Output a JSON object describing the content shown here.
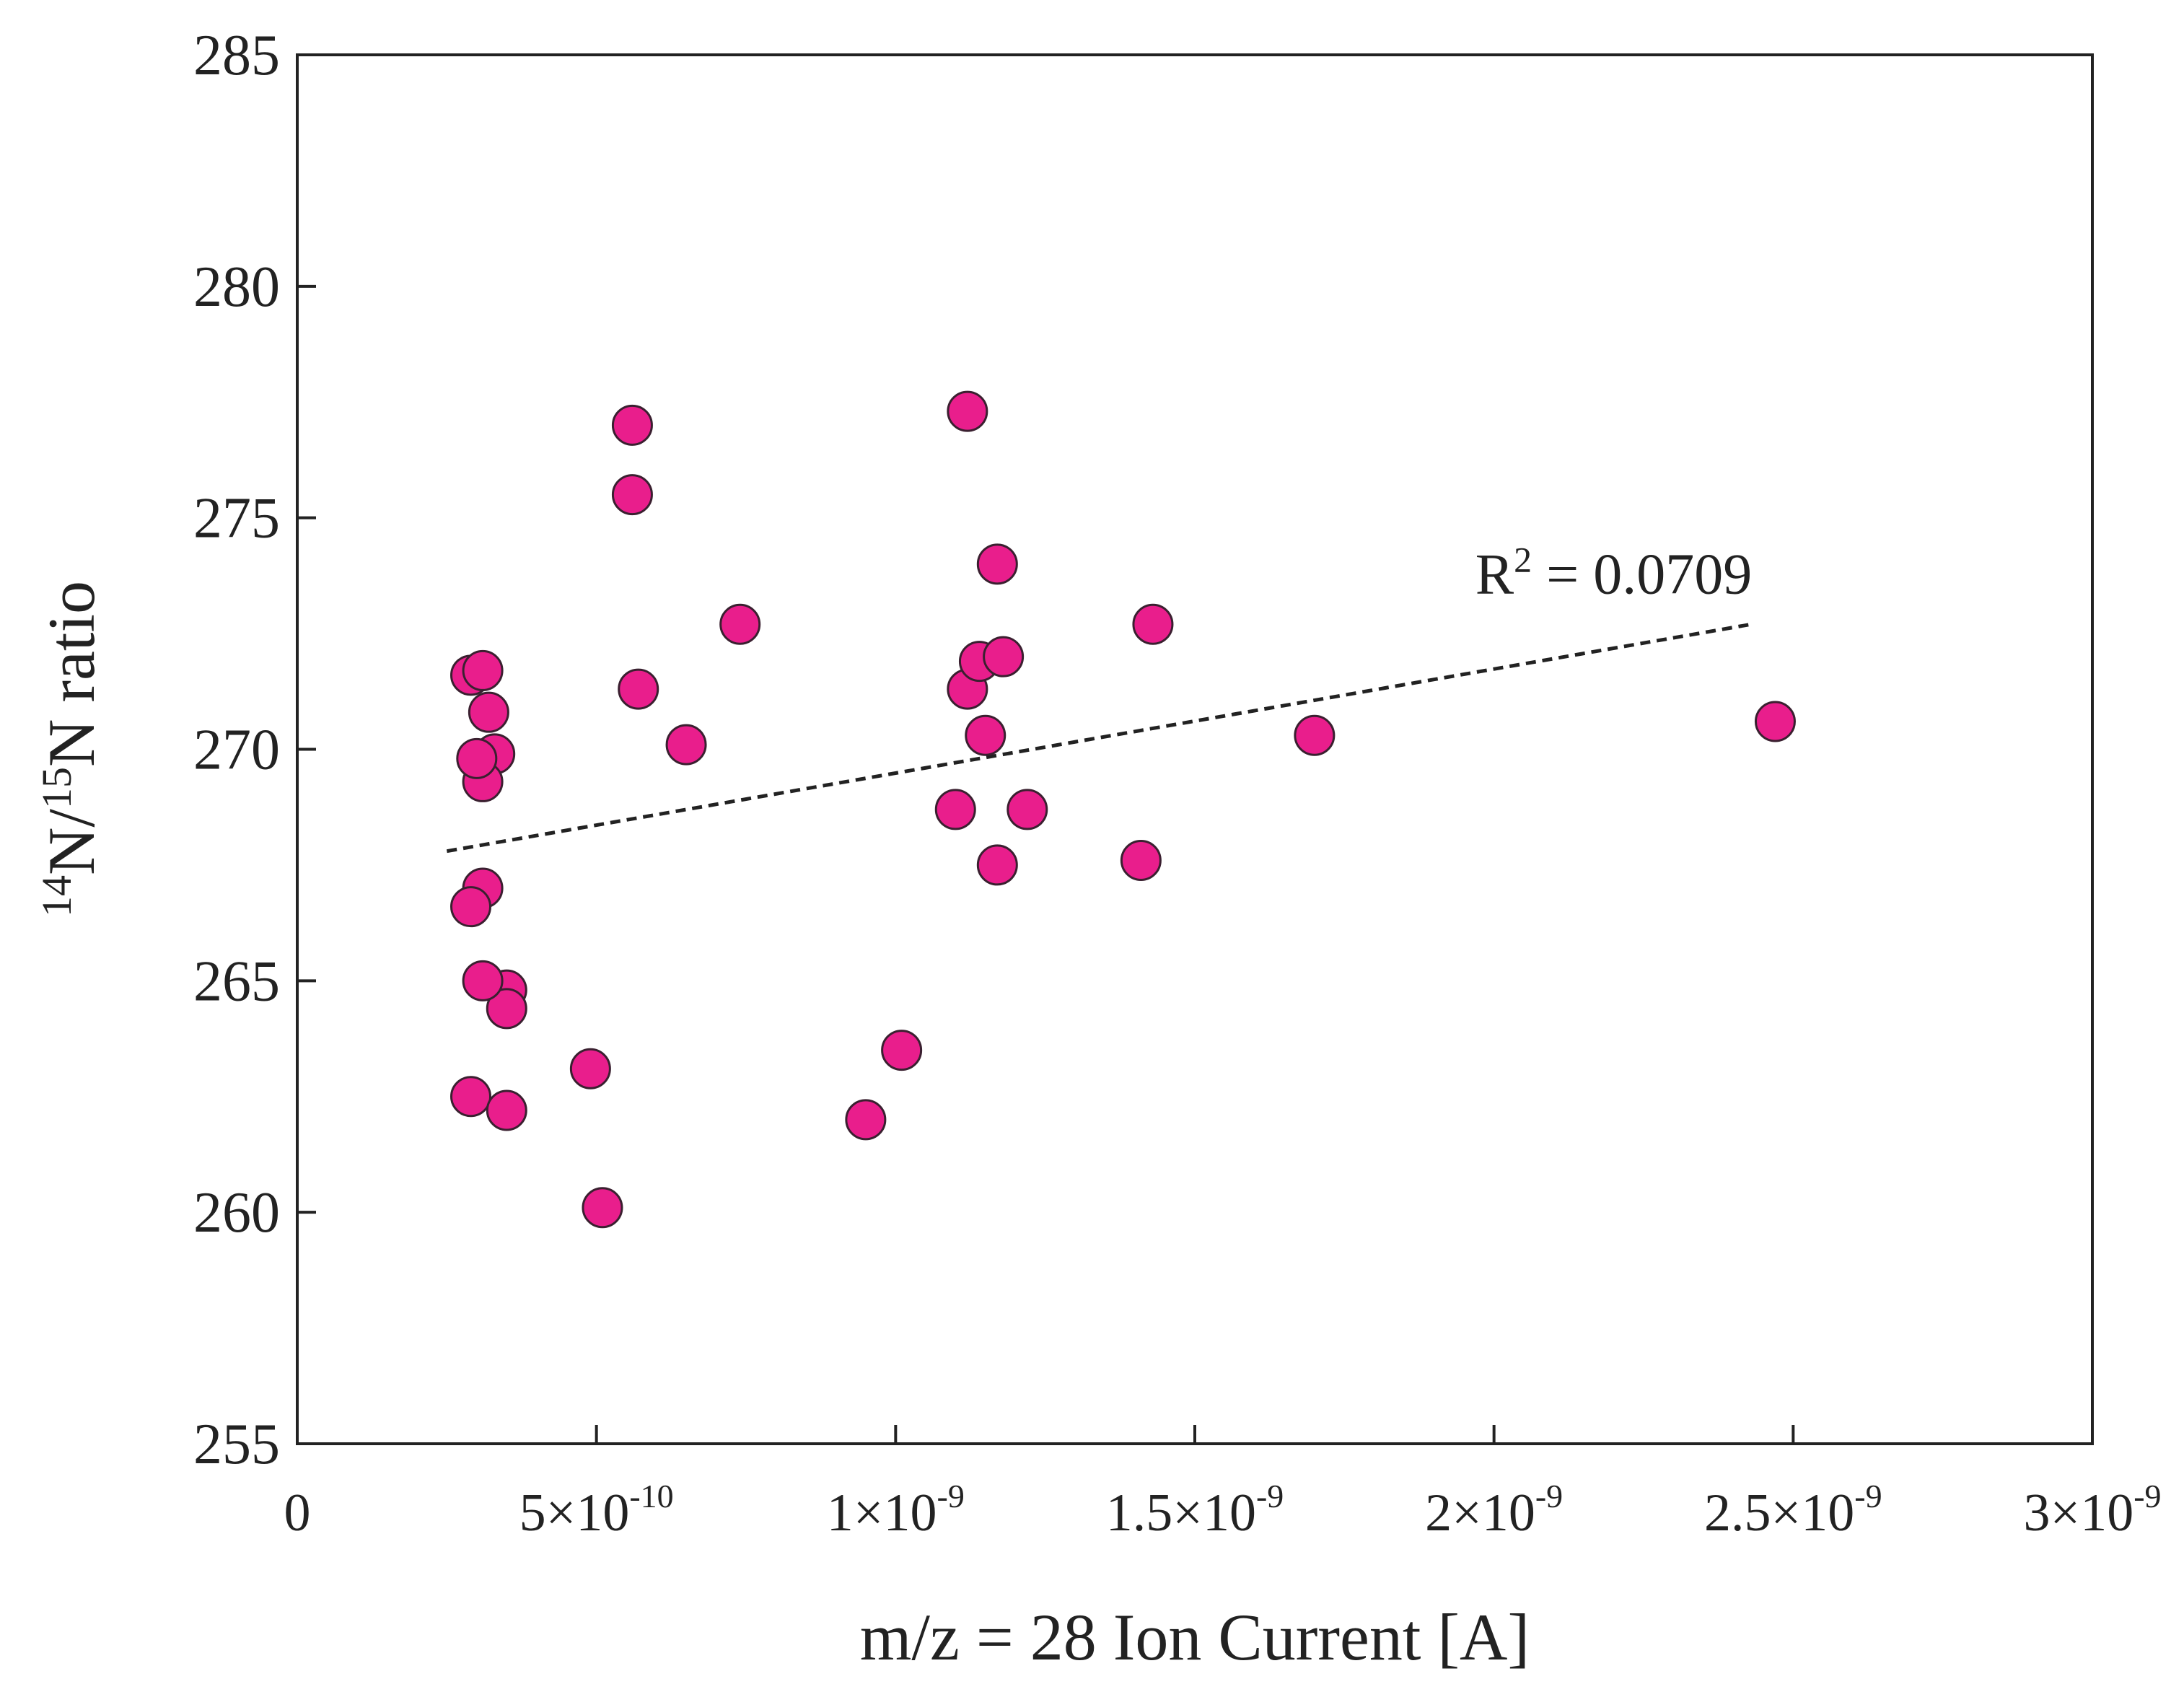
{
  "chart_data": {
    "type": "scatter",
    "title": "",
    "xlabel": {
      "prefix": "m/z = 28 Ion Current [A]"
    },
    "ylabel": {
      "sup1": "14",
      "part1": "N/",
      "sup2": "15",
      "part2": "N ratio"
    },
    "xlim": [
      0,
      3e-09
    ],
    "ylim": [
      255,
      285
    ],
    "grid": false,
    "legend": "none",
    "x_ticks": [
      {
        "value": 0,
        "base": "0",
        "exp": ""
      },
      {
        "value": 5e-10,
        "base": "5×10",
        "exp": "-10"
      },
      {
        "value": 1e-09,
        "base": "1×10",
        "exp": "-9"
      },
      {
        "value": 1.5e-09,
        "base": "1.5×10",
        "exp": "-9"
      },
      {
        "value": 2e-09,
        "base": "2×10",
        "exp": "-9"
      },
      {
        "value": 2.5e-09,
        "base": "2.5×10",
        "exp": "-9"
      },
      {
        "value": 3e-09,
        "base": "3×10",
        "exp": "-9"
      }
    ],
    "y_ticks": [
      255,
      260,
      265,
      270,
      275,
      280,
      285
    ],
    "marker_color": "#e91e8c",
    "marker_edge": "#3a2030",
    "points": [
      {
        "x": 2.9e-10,
        "y": 271.6
      },
      {
        "x": 3.1e-10,
        "y": 271.7
      },
      {
        "x": 3.2e-10,
        "y": 270.8
      },
      {
        "x": 3.3e-10,
        "y": 269.9
      },
      {
        "x": 3.1e-10,
        "y": 269.3
      },
      {
        "x": 3e-10,
        "y": 269.8
      },
      {
        "x": 3.1e-10,
        "y": 267.0
      },
      {
        "x": 2.9e-10,
        "y": 266.6
      },
      {
        "x": 3.5e-10,
        "y": 264.8
      },
      {
        "x": 3.5e-10,
        "y": 264.4
      },
      {
        "x": 3.1e-10,
        "y": 265.0
      },
      {
        "x": 2.9e-10,
        "y": 262.5
      },
      {
        "x": 3.5e-10,
        "y": 262.2
      },
      {
        "x": 4.9e-10,
        "y": 263.1
      },
      {
        "x": 5.1e-10,
        "y": 260.1
      },
      {
        "x": 5.6e-10,
        "y": 277.0
      },
      {
        "x": 5.6e-10,
        "y": 275.5
      },
      {
        "x": 5.7e-10,
        "y": 271.3
      },
      {
        "x": 6.5e-10,
        "y": 270.1
      },
      {
        "x": 7.4e-10,
        "y": 272.7
      },
      {
        "x": 9.5e-10,
        "y": 262.0
      },
      {
        "x": 1.01e-09,
        "y": 263.5
      },
      {
        "x": 1.1e-09,
        "y": 268.7
      },
      {
        "x": 1.12e-09,
        "y": 277.3
      },
      {
        "x": 1.12e-09,
        "y": 271.3
      },
      {
        "x": 1.14e-09,
        "y": 271.9
      },
      {
        "x": 1.15e-09,
        "y": 270.3
      },
      {
        "x": 1.17e-09,
        "y": 274.0
      },
      {
        "x": 1.18e-09,
        "y": 272.0
      },
      {
        "x": 1.17e-09,
        "y": 267.5
      },
      {
        "x": 1.22e-09,
        "y": 268.7
      },
      {
        "x": 1.41e-09,
        "y": 267.6
      },
      {
        "x": 1.43e-09,
        "y": 272.7
      },
      {
        "x": 1.7e-09,
        "y": 270.3
      },
      {
        "x": 2.47e-09,
        "y": 270.6
      }
    ],
    "trendline": {
      "style": "dashed",
      "x": [
        2.5e-10,
        2.43e-09
      ],
      "y": [
        267.8,
        272.7
      ]
    },
    "annotations": [
      {
        "prefix": "R",
        "sup": "2",
        "suffix": " = 0.0709",
        "x": 2.2e-09,
        "y": 273.8
      }
    ]
  }
}
